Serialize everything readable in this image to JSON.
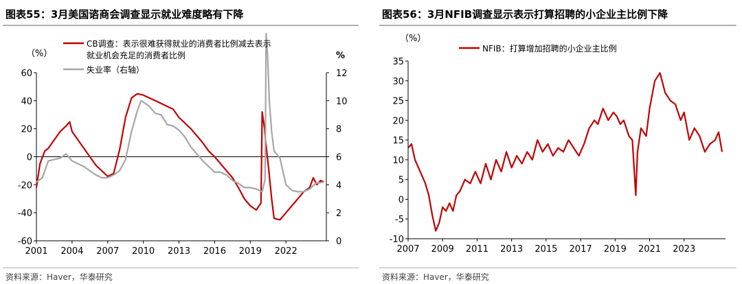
{
  "left": {
    "title": "图表55：3月美国谘商会调查显示就业难度略有下降",
    "source": "资料来源：Haver，华泰研究",
    "chart_data": {
      "type": "line",
      "title": "图表55：3月美国谘商会调查显示就业难度略有下降",
      "left_unit": "（%）",
      "right_unit": "%",
      "ylim": [
        -60,
        60
      ],
      "y_ticks": [
        -60,
        -40,
        -20,
        0,
        20,
        40,
        60
      ],
      "y2lim": [
        0,
        12
      ],
      "y2_ticks": [
        0,
        2,
        4,
        6,
        8,
        10,
        12
      ],
      "xlim": [
        2001,
        2025.4
      ],
      "x_ticks": [
        2001,
        2004,
        2007,
        2010,
        2013,
        2016,
        2019,
        2022
      ],
      "series": [
        {
          "name": "CB调查：表示很难获得就业的消费者比例减去表示就业机会充足的消费者比例",
          "legend_lines": [
            "CB调查：表示很难获得就业的消费者比例减去表示",
            "就业机会充足的消费者比例"
          ],
          "axis": "left",
          "color": "#c00000",
          "x": [
            2001.0,
            2001.3,
            2001.7,
            2002.0,
            2002.5,
            2003.0,
            2003.5,
            2003.8,
            2004.0,
            2004.5,
            2005.0,
            2005.5,
            2006.0,
            2006.5,
            2007.0,
            2007.5,
            2008.0,
            2008.5,
            2009.0,
            2009.5,
            2010.0,
            2010.5,
            2011.0,
            2011.5,
            2012.0,
            2012.5,
            2013.0,
            2013.5,
            2014.0,
            2014.5,
            2015.0,
            2015.5,
            2016.0,
            2016.5,
            2017.0,
            2017.5,
            2018.0,
            2018.5,
            2019.0,
            2019.5,
            2019.9,
            2020.0,
            2020.2,
            2020.3,
            2020.5,
            2020.8,
            2021.0,
            2021.5,
            2022.0,
            2022.5,
            2023.0,
            2023.5,
            2024.0,
            2024.3,
            2024.6,
            2024.9,
            2025.2
          ],
          "values": [
            -22,
            -5,
            4,
            6,
            12,
            18,
            22,
            25,
            18,
            12,
            6,
            0,
            -6,
            -10,
            -14,
            -12,
            5,
            28,
            42,
            45,
            44,
            42,
            40,
            38,
            36,
            34,
            28,
            24,
            20,
            15,
            10,
            4,
            0,
            -5,
            -10,
            -15,
            -22,
            -30,
            -35,
            -38,
            -33,
            32,
            20,
            10,
            -5,
            -30,
            -44,
            -45,
            -40,
            -35,
            -30,
            -25,
            -22,
            -15,
            -20,
            -17,
            -18
          ]
        },
        {
          "name": "失业率（右轴）",
          "legend_lines": [
            "失业率（右轴）"
          ],
          "axis": "right",
          "color": "#a6a6a6",
          "x": [
            2001.0,
            2001.5,
            2002.0,
            2002.5,
            2003.0,
            2003.5,
            2004.0,
            2004.5,
            2005.0,
            2005.5,
            2006.0,
            2006.5,
            2007.0,
            2007.5,
            2008.0,
            2008.5,
            2009.0,
            2009.5,
            2009.8,
            2010.0,
            2010.5,
            2011.0,
            2011.5,
            2012.0,
            2012.5,
            2013.0,
            2013.5,
            2014.0,
            2014.5,
            2015.0,
            2015.5,
            2016.0,
            2016.5,
            2017.0,
            2017.5,
            2018.0,
            2018.5,
            2019.0,
            2019.5,
            2020.0,
            2020.25,
            2020.33,
            2020.45,
            2020.6,
            2020.8,
            2021.0,
            2021.5,
            2022.0,
            2022.5,
            2023.0,
            2023.5,
            2024.0,
            2024.5,
            2025.2
          ],
          "values": [
            4.2,
            4.5,
            5.7,
            5.8,
            5.9,
            6.2,
            5.7,
            5.5,
            5.3,
            5.0,
            4.7,
            4.5,
            4.5,
            4.7,
            5.0,
            5.8,
            7.8,
            9.3,
            10.0,
            9.9,
            9.6,
            9.1,
            9.0,
            8.3,
            8.2,
            7.9,
            7.4,
            6.7,
            6.2,
            5.7,
            5.3,
            4.9,
            4.9,
            4.7,
            4.3,
            4.1,
            3.8,
            3.8,
            3.7,
            3.5,
            4.4,
            14.8,
            13.3,
            10.0,
            7.8,
            6.4,
            5.9,
            4.0,
            3.6,
            3.5,
            3.5,
            3.7,
            4.1,
            4.2
          ]
        }
      ]
    }
  },
  "right": {
    "title": "图表56：3月NFIB调查显示表示打算招聘的小企业主比例下降",
    "source": "资料来源：Haver，华泰研究",
    "chart_data": {
      "type": "line",
      "title": "图表56：3月NFIB调查显示表示打算招聘的小企业主比例下降",
      "left_unit": "（%）",
      "ylim": [
        -10,
        35
      ],
      "y_ticks": [
        -10,
        -5,
        0,
        5,
        10,
        15,
        20,
        25,
        30,
        35
      ],
      "xlim": [
        2007,
        2025.4
      ],
      "x_ticks": [
        2007,
        2009,
        2011,
        2013,
        2015,
        2017,
        2019,
        2021,
        2023
      ],
      "series": [
        {
          "name": "NFIB：打算增加招聘的小企业主比例",
          "legend_lines": [
            "NFIB：打算增加招聘的小企业主比例"
          ],
          "axis": "left",
          "color": "#c00000",
          "x": [
            2007.0,
            2007.2,
            2007.4,
            2007.6,
            2007.8,
            2008.0,
            2008.2,
            2008.4,
            2008.6,
            2008.8,
            2009.0,
            2009.2,
            2009.4,
            2009.6,
            2009.8,
            2010.0,
            2010.3,
            2010.6,
            2010.9,
            2011.2,
            2011.5,
            2011.8,
            2012.1,
            2012.4,
            2012.7,
            2013.0,
            2013.3,
            2013.6,
            2013.9,
            2014.2,
            2014.5,
            2014.8,
            2015.1,
            2015.4,
            2015.7,
            2016.0,
            2016.3,
            2016.6,
            2016.9,
            2017.2,
            2017.5,
            2017.8,
            2018.0,
            2018.3,
            2018.6,
            2018.9,
            2019.1,
            2019.3,
            2019.5,
            2019.8,
            2020.0,
            2020.2,
            2020.3,
            2020.5,
            2020.8,
            2021.0,
            2021.3,
            2021.6,
            2021.9,
            2022.2,
            2022.5,
            2022.8,
            2023.0,
            2023.3,
            2023.6,
            2023.9,
            2024.2,
            2024.5,
            2024.8,
            2025.0,
            2025.2
          ],
          "values": [
            13,
            14,
            10,
            8,
            6,
            4,
            1,
            -4,
            -8,
            -6,
            -2,
            -3,
            -1,
            -3,
            1,
            2,
            5,
            4,
            7,
            4,
            9,
            5,
            10,
            7,
            12,
            8,
            11,
            9,
            12,
            10,
            15,
            12,
            14,
            11,
            13,
            12,
            15,
            13,
            11,
            14,
            18,
            20,
            19,
            23,
            20,
            22,
            21,
            19,
            20,
            16,
            15,
            1,
            12,
            18,
            16,
            23,
            30,
            32,
            27,
            25,
            24,
            20,
            22,
            15,
            18,
            16,
            12,
            14,
            15,
            17,
            12
          ]
        }
      ]
    }
  }
}
